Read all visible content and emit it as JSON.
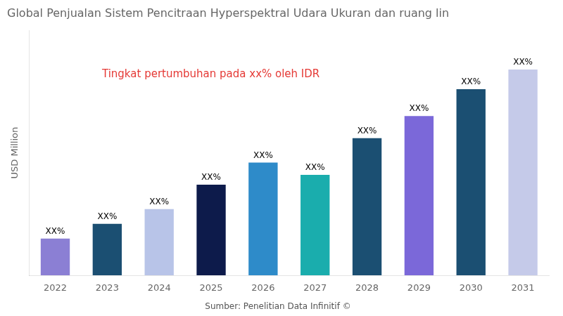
{
  "chart_data": {
    "type": "bar",
    "title": "Global Penjualan Sistem Pencitraan Hyperspektral Udara Ukuran dan ruang lin",
    "ylabel": "USD Million",
    "categories": [
      "2022",
      "2023",
      "2024",
      "2025",
      "2026",
      "2027",
      "2028",
      "2029",
      "2030",
      "2031"
    ],
    "values": [
      15,
      21,
      27,
      37,
      46,
      41,
      56,
      65,
      76,
      84
    ],
    "colors": [
      "#8B7FD4",
      "#1B4F72",
      "#B8C4E8",
      "#0D1B4B",
      "#2E8BC9",
      "#1AADAD",
      "#1B4F72",
      "#7B68D9",
      "#1B4F72",
      "#C5CAE9"
    ],
    "data_labels": true,
    "value_labels": [
      "XX%",
      "XX%",
      "XX%",
      "XX%",
      "XX%",
      "XX%",
      "XX%",
      "XX%",
      "XX%",
      "XX%"
    ],
    "annotation": {
      "text": "Tingkat pertumbuhan pada xx% oleh IDR",
      "color": "#E53935"
    },
    "source": "Sumber: Penelitian Data Infinitif ©",
    "ylim": [
      0,
      100
    ],
    "grid": false,
    "tick_labels": "x"
  }
}
